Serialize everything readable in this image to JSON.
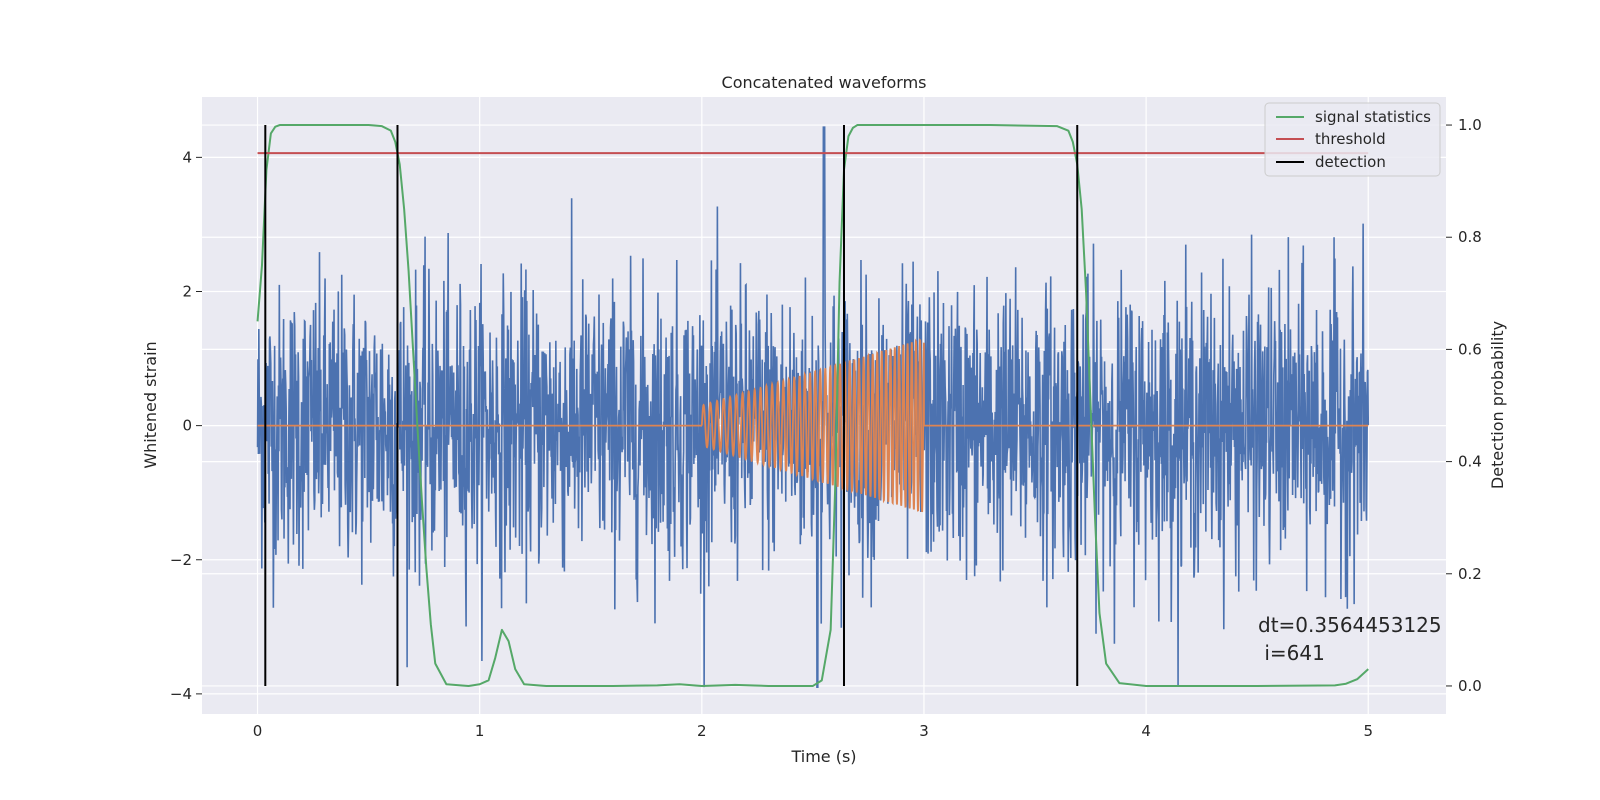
{
  "chart_data": {
    "type": "line",
    "title": "Concatenated waveforms",
    "xlabel": "Time (s)",
    "ylabel": "Whitened strain",
    "y2label": "Detection probability",
    "xlim": [
      -0.25,
      5.35
    ],
    "ylim": [
      -4.3,
      4.9
    ],
    "y2lim": [
      -0.05,
      1.05
    ],
    "x_ticks": [
      0,
      1,
      2,
      3,
      4,
      5
    ],
    "y_ticks": [
      -4,
      -2,
      0,
      2,
      4
    ],
    "y2_ticks": [
      0.0,
      0.2,
      0.4,
      0.6,
      0.8,
      1.0
    ],
    "x_tick_labels": [
      "0",
      "1",
      "2",
      "3",
      "4",
      "5"
    ],
    "y_tick_labels": [
      "−4",
      "−2",
      "0",
      "2",
      "4"
    ],
    "y2_tick_labels": [
      "0.0",
      "0.2",
      "0.4",
      "0.6",
      "0.8",
      "1.0"
    ],
    "grid": true,
    "legend_position": "top-right",
    "colors": {
      "background": "#eaeaf2",
      "grid": "#ffffff",
      "strain": "#4c72b0",
      "template": "#dd8452",
      "signal_statistics": "#55a868",
      "threshold": "#c44e52",
      "detection": "#000000"
    },
    "series": [
      {
        "name": "signal statistics",
        "axis": "right",
        "x": [
          0.0,
          0.02,
          0.04,
          0.06,
          0.08,
          0.1,
          0.15,
          0.3,
          0.5,
          0.56,
          0.6,
          0.62,
          0.64,
          0.66,
          0.68,
          0.7,
          0.72,
          0.74,
          0.76,
          0.78,
          0.8,
          0.85,
          0.95,
          1.0,
          1.04,
          1.07,
          1.1,
          1.13,
          1.16,
          1.2,
          1.3,
          1.6,
          1.8,
          1.9,
          2.0,
          2.15,
          2.3,
          2.5,
          2.54,
          2.58,
          2.6,
          2.62,
          2.64,
          2.66,
          2.68,
          2.7,
          2.75,
          2.9,
          3.3,
          3.6,
          3.65,
          3.67,
          3.69,
          3.71,
          3.73,
          3.75,
          3.77,
          3.79,
          3.82,
          3.88,
          4.0,
          4.5,
          4.85,
          4.9,
          4.95,
          5.0
        ],
        "values": [
          0.65,
          0.75,
          0.92,
          0.985,
          0.997,
          1.0,
          1.0,
          1.0,
          1.0,
          0.998,
          0.99,
          0.97,
          0.93,
          0.85,
          0.74,
          0.6,
          0.46,
          0.33,
          0.21,
          0.11,
          0.04,
          0.003,
          0.0,
          0.003,
          0.01,
          0.05,
          0.1,
          0.08,
          0.03,
          0.003,
          0.0,
          0.0,
          0.001,
          0.003,
          0.0,
          0.002,
          0.0,
          0.0,
          0.01,
          0.1,
          0.35,
          0.72,
          0.92,
          0.98,
          0.995,
          1.0,
          1.0,
          1.0,
          1.0,
          0.998,
          0.99,
          0.97,
          0.93,
          0.85,
          0.7,
          0.5,
          0.3,
          0.13,
          0.04,
          0.005,
          0.0,
          0.0,
          0.001,
          0.004,
          0.012,
          0.03
        ]
      },
      {
        "name": "threshold",
        "axis": "right",
        "x": [
          0.0,
          5.0
        ],
        "values": [
          0.95,
          0.95
        ]
      },
      {
        "name": "detection",
        "axis": "right",
        "type": "vlines",
        "x": [
          0.035,
          0.63,
          2.64,
          3.69
        ],
        "range": [
          0.0,
          1.0
        ]
      }
    ],
    "template_signal": {
      "t_start": 2.0,
      "t_end": 3.0,
      "amp_start": 0.3,
      "amp_end": 1.3,
      "cycles": 32
    },
    "noise": {
      "t_start": 0.0,
      "t_end": 5.0,
      "typical_peak": 2.3,
      "max_peak": 4.45,
      "min_trough": -3.9
    },
    "annotations": [
      "dt=0.3564453125",
      " i=641"
    ]
  }
}
